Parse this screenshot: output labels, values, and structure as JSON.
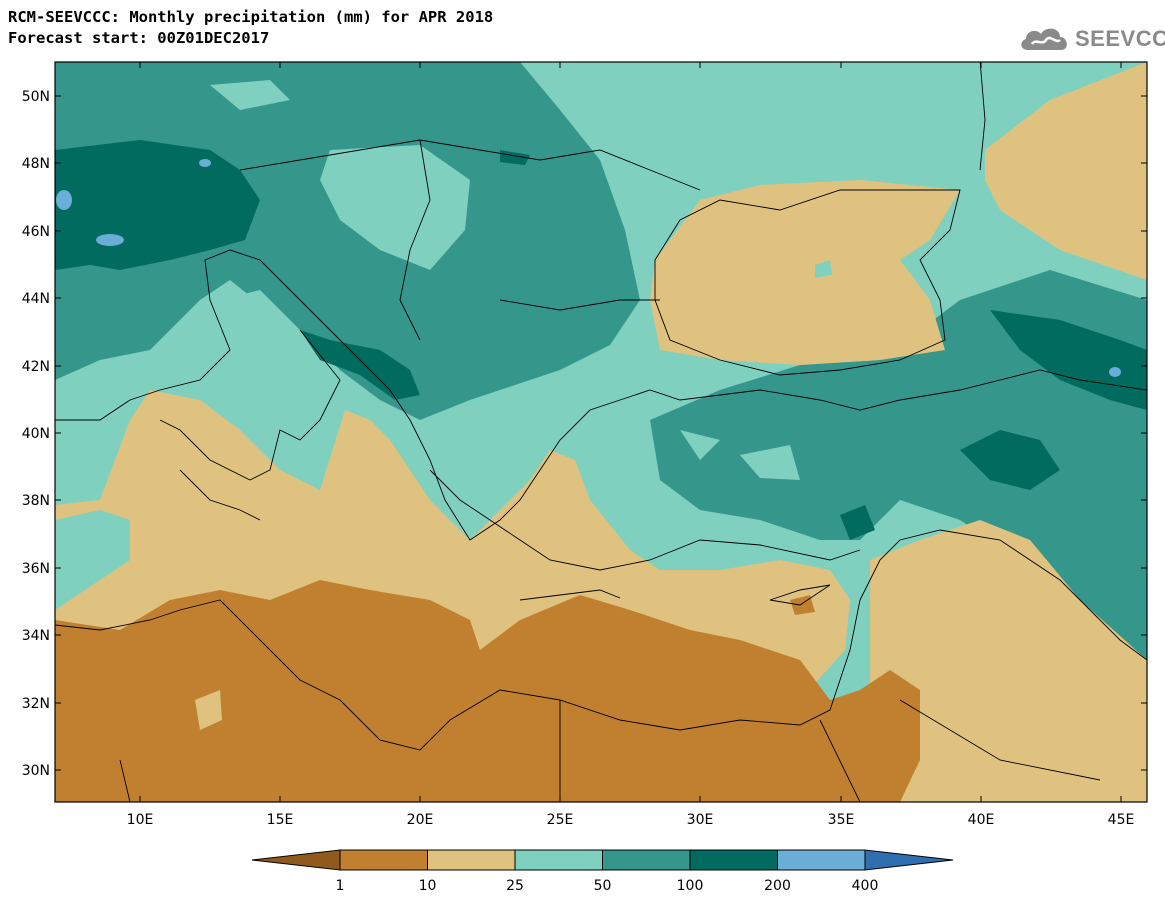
{
  "header": {
    "title_line1": "RCM-SEEVCCC: Monthly precipitation (mm) for APR 2018",
    "title_line2": "Forecast start: 00Z01DEC2017"
  },
  "logo": {
    "text": "SEEVCCC",
    "icon": "cloud-icon",
    "color": "#8a8a8a"
  },
  "map": {
    "lat_labels": [
      "50N",
      "48N",
      "46N",
      "44N",
      "42N",
      "40N",
      "38N",
      "36N",
      "34N",
      "32N",
      "30N"
    ],
    "lon_labels": [
      "10E",
      "15E",
      "20E",
      "25E",
      "30E",
      "35E",
      "40E",
      "45E"
    ]
  },
  "colorbar": {
    "labels": [
      "1",
      "10",
      "25",
      "50",
      "100",
      "200",
      "400"
    ],
    "colors": [
      "#8f5a1c",
      "#c08030",
      "#e0c280",
      "#80d0c0",
      "#35968c",
      "#006b5e",
      "#6aaed8",
      "#2f6fb0"
    ]
  }
}
